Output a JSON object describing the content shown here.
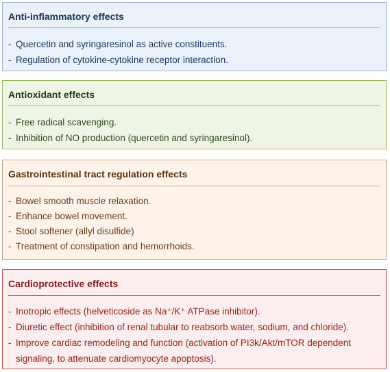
{
  "panels": [
    {
      "title": "Anti-inflammatory effects",
      "items": [
        "Quercetin and syringaresinol as active constituents.",
        "Regulation of cytokine-cytokine receptor interaction."
      ]
    },
    {
      "title": "Antioxidant effects",
      "items": [
        "Free radical scavenging.",
        "Inhibition of NO production (quercetin and syringaresinol)."
      ]
    },
    {
      "title": "Gastrointestinal tract regulation effects",
      "items": [
        "Bowel smooth muscle relaxation.",
        "Enhance bowel movement.",
        "Stool softener (allyl disulfide)",
        "Treatment of constipation and hemorrhoids."
      ]
    },
    {
      "title": "Cardioprotective effects",
      "items": [
        "Inotropic effects (helveticoside as Na⁺/K⁺ ATPase inhibitor).",
        "Diuretic effect (inhibition of renal tubular to reabsorb water, sodium, and chloride).",
        "Improve cardiac remodeling and function (activation of PI3k/Akt/mTOR dependent",
        "signaling, to attenuate cardiomyocyte apoptosis)."
      ]
    }
  ],
  "bullet": "-",
  "colors": {
    "anti_inflammatory_bg": "#eaf1f9",
    "anti_inflammatory_border": "#95b3d7",
    "antioxidant_bg": "#eef5e7",
    "antioxidant_border": "#9bbb59",
    "gastrointestinal_bg": "#fdf3ea",
    "gastrointestinal_border": "#c9a27f",
    "cardioprotective_bg": "#fbeeee",
    "cardioprotective_border": "#c0504d"
  }
}
